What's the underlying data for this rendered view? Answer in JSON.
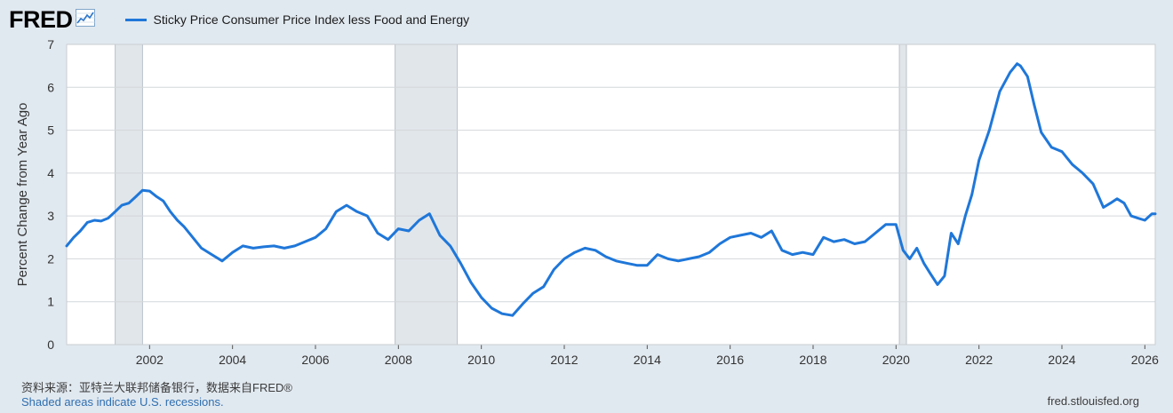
{
  "header": {
    "logo_text": "FRED",
    "logo_icon": "line-graph-icon"
  },
  "footer": {
    "source": "资料来源：亚特兰大联邦储备银行，数据来自FRED®",
    "recession_note": "Shaded areas indicate U.S. recessions.",
    "site": "fred.stlouisfed.org"
  },
  "colors": {
    "series": "#1f77d9",
    "background": "#e1e9f0",
    "plot_bg": "#ffffff",
    "recession": "#e1e6eb"
  },
  "chart_data": {
    "type": "line",
    "ylabel": "Percent Change from Year Ago",
    "xlim": [
      2000.0,
      2026.25
    ],
    "ylim": [
      0,
      7
    ],
    "yticks": [
      0,
      1,
      2,
      3,
      4,
      5,
      6,
      7
    ],
    "xticks": [
      "2002",
      "2004",
      "2006",
      "2008",
      "2010",
      "2012",
      "2014",
      "2016",
      "2018",
      "2020",
      "2022",
      "2024",
      "2026"
    ],
    "grid": true,
    "legend_position": "top",
    "recessions": [
      [
        2001.17,
        2001.83
      ],
      [
        2007.92,
        2009.42
      ],
      [
        2020.08,
        2020.25
      ]
    ],
    "series": [
      {
        "name": "Sticky Price Consumer Price Index less Food and Energy",
        "x": [
          2000.0,
          2000.17,
          2000.33,
          2000.5,
          2000.67,
          2000.83,
          2001.0,
          2001.17,
          2001.33,
          2001.5,
          2001.67,
          2001.83,
          2002.0,
          2002.17,
          2002.33,
          2002.5,
          2002.67,
          2002.83,
          2003.0,
          2003.25,
          2003.5,
          2003.75,
          2004.0,
          2004.25,
          2004.5,
          2004.75,
          2005.0,
          2005.25,
          2005.5,
          2005.75,
          2006.0,
          2006.25,
          2006.5,
          2006.75,
          2007.0,
          2007.25,
          2007.5,
          2007.75,
          2008.0,
          2008.25,
          2008.5,
          2008.75,
          2009.0,
          2009.25,
          2009.5,
          2009.75,
          2010.0,
          2010.25,
          2010.5,
          2010.75,
          2011.0,
          2011.25,
          2011.5,
          2011.75,
          2012.0,
          2012.25,
          2012.5,
          2012.75,
          2013.0,
          2013.25,
          2013.5,
          2013.75,
          2014.0,
          2014.25,
          2014.5,
          2014.75,
          2015.0,
          2015.25,
          2015.5,
          2015.75,
          2016.0,
          2016.25,
          2016.5,
          2016.75,
          2017.0,
          2017.25,
          2017.5,
          2017.75,
          2018.0,
          2018.25,
          2018.5,
          2018.75,
          2019.0,
          2019.25,
          2019.5,
          2019.75,
          2020.0,
          2020.17,
          2020.33,
          2020.5,
          2020.67,
          2020.83,
          2021.0,
          2021.17,
          2021.33,
          2021.5,
          2021.67,
          2021.83,
          2022.0,
          2022.25,
          2022.5,
          2022.75,
          2022.92,
          2023.0,
          2023.17,
          2023.33,
          2023.5,
          2023.75,
          2024.0,
          2024.25,
          2024.5,
          2024.75,
          2025.0,
          2025.17,
          2025.33,
          2025.5,
          2025.67,
          2025.83,
          2026.0,
          2026.17,
          2026.25
        ],
        "values": [
          2.3,
          2.5,
          2.65,
          2.85,
          2.9,
          2.88,
          2.95,
          3.1,
          3.25,
          3.3,
          3.45,
          3.6,
          3.58,
          3.45,
          3.35,
          3.1,
          2.9,
          2.75,
          2.55,
          2.25,
          2.1,
          1.95,
          2.15,
          2.3,
          2.25,
          2.28,
          2.3,
          2.25,
          2.3,
          2.4,
          2.5,
          2.7,
          3.1,
          3.25,
          3.1,
          3.0,
          2.6,
          2.45,
          2.7,
          2.65,
          2.9,
          3.05,
          2.55,
          2.3,
          1.9,
          1.45,
          1.1,
          0.85,
          0.72,
          0.68,
          0.95,
          1.2,
          1.35,
          1.75,
          2.0,
          2.15,
          2.25,
          2.2,
          2.05,
          1.95,
          1.9,
          1.85,
          1.85,
          2.1,
          2.0,
          1.95,
          2.0,
          2.05,
          2.15,
          2.35,
          2.5,
          2.55,
          2.6,
          2.5,
          2.65,
          2.2,
          2.1,
          2.15,
          2.1,
          2.5,
          2.4,
          2.45,
          2.35,
          2.4,
          2.6,
          2.8,
          2.8,
          2.2,
          2.0,
          2.25,
          1.9,
          1.65,
          1.4,
          1.6,
          2.6,
          2.35,
          3.0,
          3.5,
          4.3,
          5.0,
          5.9,
          6.35,
          6.55,
          6.5,
          6.25,
          5.6,
          4.95,
          4.6,
          4.5,
          4.2,
          4.0,
          3.75,
          3.2,
          3.3,
          3.4,
          3.3,
          3.0,
          2.95,
          2.9,
          3.05,
          3.05
        ]
      }
    ]
  }
}
